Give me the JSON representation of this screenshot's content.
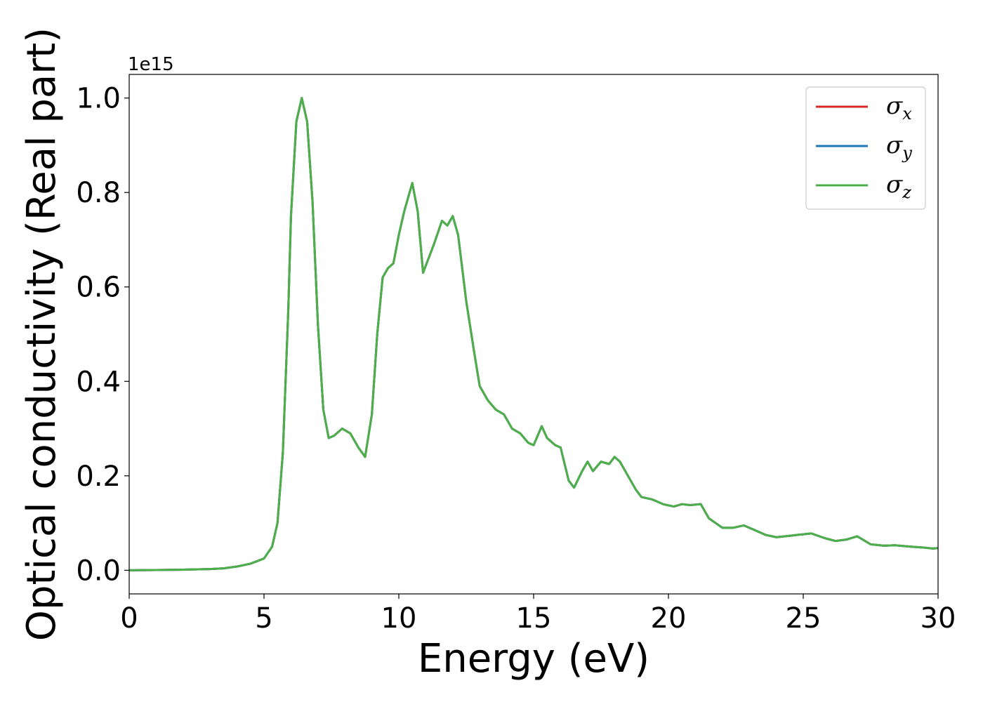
{
  "chart_data": {
    "type": "line",
    "xlabel": "Energy (eV)",
    "ylabel": "Optical conductivity (Real part)",
    "y_offset_label": "1e15",
    "xlim": [
      0,
      30
    ],
    "ylim": [
      -0.05,
      1.05
    ],
    "xticks": [
      0,
      5,
      10,
      15,
      20,
      25,
      30
    ],
    "yticks": [
      0.0,
      0.2,
      0.4,
      0.6,
      0.8,
      1.0
    ],
    "xtick_labels": [
      "0",
      "5",
      "10",
      "15",
      "20",
      "25",
      "30"
    ],
    "ytick_labels": [
      "0.0",
      "0.2",
      "0.4",
      "0.6",
      "0.8",
      "1.0"
    ],
    "grid": false,
    "legend_position": "top-right",
    "series": [
      {
        "name": "σx",
        "symbol": "σ",
        "subscript": "x",
        "color": "#d62728"
      },
      {
        "name": "σy",
        "symbol": "σ",
        "subscript": "y",
        "color": "#1f77b4"
      },
      {
        "name": "σz",
        "symbol": "σ",
        "subscript": "z",
        "color": "#4daf4a"
      }
    ],
    "x": [
      0,
      1,
      2,
      3,
      3.5,
      4,
      4.5,
      5,
      5.3,
      5.5,
      5.7,
      5.9,
      6.0,
      6.2,
      6.4,
      6.6,
      6.8,
      7.0,
      7.2,
      7.4,
      7.6,
      7.9,
      8.2,
      8.5,
      8.75,
      9.0,
      9.2,
      9.4,
      9.6,
      9.8,
      10.0,
      10.2,
      10.5,
      10.7,
      10.9,
      11.1,
      11.3,
      11.6,
      11.8,
      12.0,
      12.2,
      12.5,
      12.8,
      13.0,
      13.3,
      13.6,
      13.9,
      14.2,
      14.5,
      14.8,
      15.0,
      15.3,
      15.5,
      15.8,
      16.0,
      16.3,
      16.5,
      16.8,
      17.0,
      17.2,
      17.5,
      17.8,
      18.0,
      18.2,
      18.5,
      18.8,
      19.0,
      19.4,
      19.8,
      20.2,
      20.5,
      20.8,
      21.2,
      21.5,
      22.0,
      22.4,
      22.8,
      23.2,
      23.6,
      24.0,
      24.5,
      24.8,
      25.3,
      25.8,
      26.2,
      26.6,
      27.0,
      27.5,
      28.0,
      28.4,
      29.0,
      29.5,
      29.8,
      30.0
    ],
    "y": [
      0.0,
      0.0005,
      0.0012,
      0.0025,
      0.004,
      0.008,
      0.014,
      0.025,
      0.05,
      0.1,
      0.25,
      0.55,
      0.75,
      0.95,
      1.0,
      0.95,
      0.78,
      0.52,
      0.34,
      0.28,
      0.285,
      0.3,
      0.29,
      0.26,
      0.24,
      0.33,
      0.5,
      0.62,
      0.64,
      0.65,
      0.71,
      0.76,
      0.82,
      0.76,
      0.63,
      0.66,
      0.69,
      0.74,
      0.73,
      0.75,
      0.71,
      0.57,
      0.46,
      0.39,
      0.36,
      0.34,
      0.33,
      0.3,
      0.29,
      0.27,
      0.265,
      0.305,
      0.28,
      0.265,
      0.26,
      0.19,
      0.175,
      0.21,
      0.23,
      0.21,
      0.23,
      0.225,
      0.24,
      0.23,
      0.2,
      0.17,
      0.155,
      0.15,
      0.14,
      0.135,
      0.14,
      0.138,
      0.14,
      0.11,
      0.09,
      0.09,
      0.095,
      0.085,
      0.075,
      0.07,
      0.073,
      0.075,
      0.078,
      0.068,
      0.062,
      0.065,
      0.072,
      0.055,
      0.052,
      0.053,
      0.05,
      0.048,
      0.046,
      0.047
    ]
  }
}
